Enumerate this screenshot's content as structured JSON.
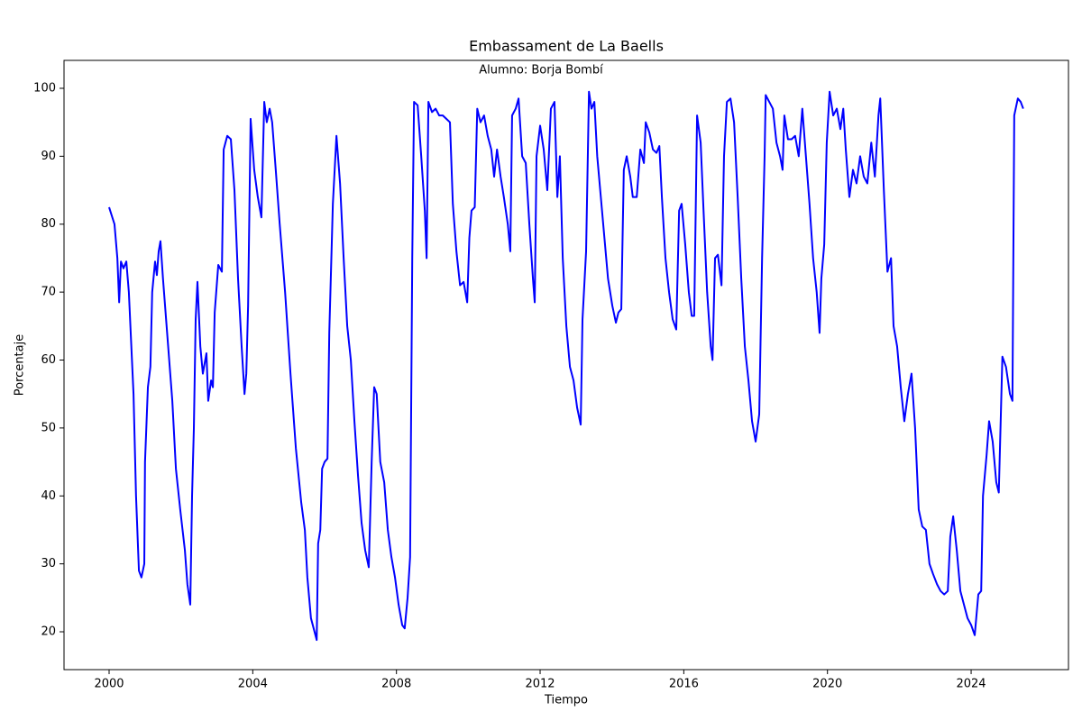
{
  "chart_data": {
    "type": "line",
    "title": "Embassament de La Baells",
    "subtitle": "Alumno: Borja Bombí",
    "xlabel": "Tiempo",
    "ylabel": "Porcentaje",
    "xlim": [
      1998.745,
      2026.71
    ],
    "ylim": [
      14.43,
      104.11
    ],
    "xticks": [
      2000,
      2004,
      2008,
      2012,
      2016,
      2020,
      2024
    ],
    "yticks": [
      20,
      30,
      40,
      50,
      60,
      70,
      80,
      90,
      100
    ],
    "grid": false,
    "series": [
      {
        "color": "#0000ff",
        "x": [
          2000.0,
          2000.15,
          2000.23,
          2000.28,
          2000.33,
          2000.4,
          2000.48,
          2000.55,
          2000.68,
          2000.75,
          2000.83,
          2000.9,
          2000.98,
          2001.0,
          2001.08,
          2001.15,
          2001.2,
          2001.28,
          2001.33,
          2001.38,
          2001.43,
          2001.5,
          2001.63,
          2001.76,
          2001.86,
          2001.98,
          2002.11,
          2002.18,
          2002.26,
          2002.31,
          2002.36,
          2002.41,
          2002.46,
          2002.54,
          2002.61,
          2002.71,
          2002.76,
          2002.84,
          2002.89,
          2002.94,
          2003.04,
          2003.14,
          2003.19,
          2003.29,
          2003.39,
          2003.49,
          2003.59,
          2003.69,
          2003.77,
          2003.82,
          2003.87,
          2003.94,
          2004.04,
          2004.14,
          2004.24,
          2004.32,
          2004.39,
          2004.47,
          2004.54,
          2004.64,
          2004.75,
          2004.9,
          2005.05,
          2005.2,
          2005.35,
          2005.45,
          2005.52,
          2005.62,
          2005.78,
          2005.82,
          2005.88,
          2005.93,
          2006.0,
          2006.08,
          2006.13,
          2006.23,
          2006.33,
          2006.43,
          2006.53,
          2006.63,
          2006.73,
          2006.83,
          2006.93,
          2007.03,
          2007.13,
          2007.23,
          2007.31,
          2007.38,
          2007.45,
          2007.55,
          2007.66,
          2007.76,
          2007.86,
          2007.96,
          2008.06,
          2008.16,
          2008.23,
          2008.31,
          2008.38,
          2008.44,
          2008.49,
          2008.59,
          2008.69,
          2008.79,
          2008.84,
          2008.89,
          2008.99,
          2009.09,
          2009.19,
          2009.29,
          2009.39,
          2009.49,
          2009.57,
          2009.67,
          2009.77,
          2009.87,
          2009.97,
          2010.03,
          2010.09,
          2010.18,
          2010.25,
          2010.34,
          2010.44,
          2010.54,
          2010.64,
          2010.72,
          2010.8,
          2010.9,
          2010.99,
          2011.1,
          2011.17,
          2011.22,
          2011.32,
          2011.4,
          2011.5,
          2011.6,
          2011.7,
          2011.8,
          2011.85,
          2011.9,
          2012.0,
          2012.1,
          2012.2,
          2012.3,
          2012.4,
          2012.48,
          2012.55,
          2012.63,
          2012.73,
          2012.83,
          2012.93,
          2013.03,
          2013.13,
          2013.18,
          2013.28,
          2013.36,
          2013.43,
          2013.51,
          2013.59,
          2013.69,
          2013.79,
          2013.89,
          2014.01,
          2014.11,
          2014.18,
          2014.26,
          2014.33,
          2014.41,
          2014.51,
          2014.58,
          2014.69,
          2014.79,
          2014.89,
          2014.94,
          2015.04,
          2015.14,
          2015.24,
          2015.32,
          2015.39,
          2015.49,
          2015.59,
          2015.69,
          2015.79,
          2015.87,
          2015.94,
          2016.04,
          2016.14,
          2016.22,
          2016.29,
          2016.37,
          2016.47,
          2016.55,
          2016.65,
          2016.75,
          2016.8,
          2016.87,
          2016.95,
          2017.05,
          2017.12,
          2017.2,
          2017.3,
          2017.4,
          2017.5,
          2017.6,
          2017.7,
          2017.8,
          2017.9,
          2018.0,
          2018.1,
          2018.18,
          2018.25,
          2018.28,
          2018.38,
          2018.48,
          2018.58,
          2018.68,
          2018.75,
          2018.8,
          2018.9,
          2019.0,
          2019.1,
          2019.2,
          2019.3,
          2019.4,
          2019.5,
          2019.6,
          2019.7,
          2019.78,
          2019.83,
          2019.91,
          2019.98,
          2020.06,
          2020.16,
          2020.26,
          2020.36,
          2020.44,
          2020.51,
          2020.61,
          2020.71,
          2020.81,
          2020.91,
          2021.01,
          2021.11,
          2021.22,
          2021.32,
          2021.42,
          2021.47,
          2021.57,
          2021.67,
          2021.77,
          2021.84,
          2021.94,
          2022.04,
          2022.14,
          2022.24,
          2022.34,
          2022.44,
          2022.54,
          2022.64,
          2022.74,
          2022.84,
          2022.94,
          2023.05,
          2023.15,
          2023.25,
          2023.35,
          2023.42,
          2023.5,
          2023.6,
          2023.7,
          2023.8,
          2023.9,
          2024.0,
          2024.1,
          2024.2,
          2024.28,
          2024.33,
          2024.43,
          2024.5,
          2024.6,
          2024.7,
          2024.77,
          2024.87,
          2024.97,
          2025.08,
          2025.15,
          2025.2,
          2025.3,
          2025.38,
          2025.45
        ],
        "values": [
          82.5,
          80,
          75,
          68.5,
          74.5,
          73.5,
          74.5,
          70,
          55,
          40,
          29,
          28,
          30,
          45,
          56,
          59,
          70,
          74.5,
          72.5,
          76,
          77.5,
          72,
          63,
          54,
          44,
          38,
          32,
          27,
          24,
          40,
          50,
          66,
          71.5,
          62,
          58,
          61,
          54,
          57,
          56,
          67,
          74,
          73,
          91,
          93,
          92.5,
          85,
          72,
          62,
          55,
          58,
          68,
          95.5,
          88,
          84,
          81,
          98,
          95,
          97,
          95,
          88,
          80,
          70,
          58,
          47,
          39,
          35,
          28,
          22,
          18.8,
          33,
          35,
          44,
          45,
          45.5,
          64,
          83,
          93,
          86,
          75,
          65,
          60,
          51,
          43,
          36,
          32,
          29.5,
          45,
          56,
          55,
          45,
          42,
          35,
          31,
          28,
          24,
          21,
          20.5,
          25,
          31,
          75,
          98,
          97.5,
          90,
          82,
          75,
          98,
          96.5,
          97,
          96,
          96,
          95.5,
          95,
          83,
          76,
          71,
          71.5,
          68.5,
          78,
          82,
          82.5,
          97,
          95,
          96,
          93,
          91,
          87,
          91,
          87,
          84,
          80,
          76,
          96,
          97,
          98.5,
          90,
          89,
          80,
          72,
          68.5,
          90,
          94.5,
          91,
          85,
          97,
          98,
          84,
          90,
          75,
          65,
          59,
          57,
          53,
          50.5,
          66,
          76,
          99.5,
          97,
          98,
          90,
          84,
          78,
          72,
          68,
          65.5,
          67,
          67.5,
          88,
          90,
          87,
          84,
          84,
          91,
          89,
          95,
          93.5,
          91,
          90.5,
          91.5,
          84,
          75,
          70,
          66,
          64.5,
          82,
          83,
          77,
          70,
          66.5,
          66.5,
          96,
          92,
          82,
          70,
          62,
          60,
          75,
          75.5,
          71,
          90,
          98,
          98.5,
          95,
          84,
          72,
          62,
          57,
          51,
          48,
          52,
          75,
          90,
          99,
          98,
          97,
          92,
          90,
          88,
          96,
          92.5,
          92.5,
          93,
          90,
          97,
          90,
          83,
          75,
          70,
          64,
          72,
          77,
          92,
          99.5,
          96,
          97,
          94,
          97,
          91,
          84,
          88,
          86,
          90,
          87,
          86,
          92,
          87,
          96,
          98.5,
          85,
          73,
          75,
          65,
          62,
          56,
          51,
          55,
          58,
          50,
          38,
          35.5,
          35,
          30,
          28.5,
          27,
          26,
          25.5,
          26,
          34,
          37,
          32,
          26,
          24,
          22,
          21,
          19.5,
          25.5,
          26,
          40,
          46,
          51,
          48,
          42,
          40.5,
          60.5,
          59,
          55,
          54,
          96,
          98.5,
          98,
          97
        ]
      }
    ]
  }
}
